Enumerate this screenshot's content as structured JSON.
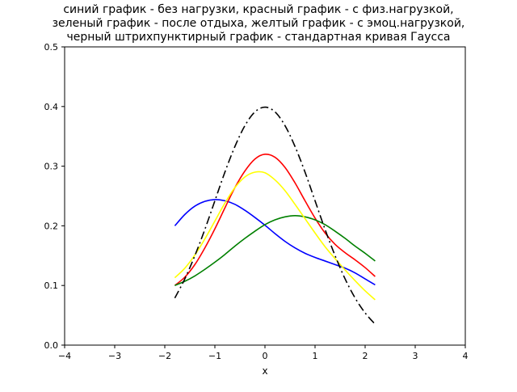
{
  "chart_data": {
    "type": "line",
    "title_lines": [
      "синий график - без нагрузки, красный график - с физ.нагрузкой,",
      "зеленый график - после отдыха, желтый график - с эмоц.нагрузкой,",
      "черный штрихпунктирный график - стандартная кривая Гаусса"
    ],
    "xlabel": "x",
    "ylabel": "",
    "xlim": [
      -4,
      4
    ],
    "ylim": [
      0,
      0.5
    ],
    "xticks": [
      -4,
      -3,
      -2,
      -1,
      0,
      1,
      2,
      3,
      4
    ],
    "xtick_labels": [
      "−4",
      "−3",
      "−2",
      "−1",
      "0",
      "1",
      "2",
      "3",
      "4"
    ],
    "yticks": [
      0.0,
      0.1,
      0.2,
      0.3,
      0.4,
      0.5
    ],
    "ytick_labels": [
      "0.0",
      "0.1",
      "0.2",
      "0.3",
      "0.4",
      "0.5"
    ],
    "grid": false,
    "legend": "none",
    "x": [
      -1.8,
      -1.6,
      -1.4,
      -1.2,
      -1.0,
      -0.8,
      -0.6,
      -0.4,
      -0.2,
      0.0,
      0.2,
      0.4,
      0.6,
      0.8,
      1.0,
      1.2,
      1.4,
      1.6,
      1.8,
      2.0,
      2.2
    ],
    "series": [
      {
        "color": "#0000ff",
        "style": "solid",
        "values": [
          0.2,
          0.219,
          0.233,
          0.241,
          0.244,
          0.242,
          0.236,
          0.226,
          0.214,
          0.201,
          0.187,
          0.174,
          0.163,
          0.154,
          0.147,
          0.141,
          0.135,
          0.129,
          0.121,
          0.111,
          0.101
        ]
      },
      {
        "color": "#ff0000",
        "style": "solid",
        "values": [
          0.1,
          0.114,
          0.135,
          0.163,
          0.195,
          0.23,
          0.264,
          0.292,
          0.312,
          0.32,
          0.315,
          0.298,
          0.272,
          0.242,
          0.213,
          0.188,
          0.169,
          0.155,
          0.143,
          0.13,
          0.115
        ]
      },
      {
        "color": "#008000",
        "style": "solid",
        "values": [
          0.1,
          0.107,
          0.116,
          0.127,
          0.139,
          0.152,
          0.166,
          0.179,
          0.191,
          0.202,
          0.21,
          0.215,
          0.217,
          0.215,
          0.21,
          0.202,
          0.191,
          0.179,
          0.166,
          0.154,
          0.141
        ]
      },
      {
        "color": "#ffff00",
        "style": "solid",
        "values": [
          0.113,
          0.129,
          0.151,
          0.178,
          0.208,
          0.238,
          0.264,
          0.282,
          0.29,
          0.289,
          0.277,
          0.259,
          0.236,
          0.212,
          0.188,
          0.165,
          0.145,
          0.126,
          0.108,
          0.091,
          0.076
        ]
      },
      {
        "color": "#000000",
        "style": "dashdot",
        "values": [
          0.079,
          0.111,
          0.15,
          0.194,
          0.242,
          0.29,
          0.333,
          0.368,
          0.391,
          0.399,
          0.391,
          0.368,
          0.333,
          0.29,
          0.242,
          0.194,
          0.15,
          0.111,
          0.079,
          0.054,
          0.035
        ]
      }
    ]
  }
}
